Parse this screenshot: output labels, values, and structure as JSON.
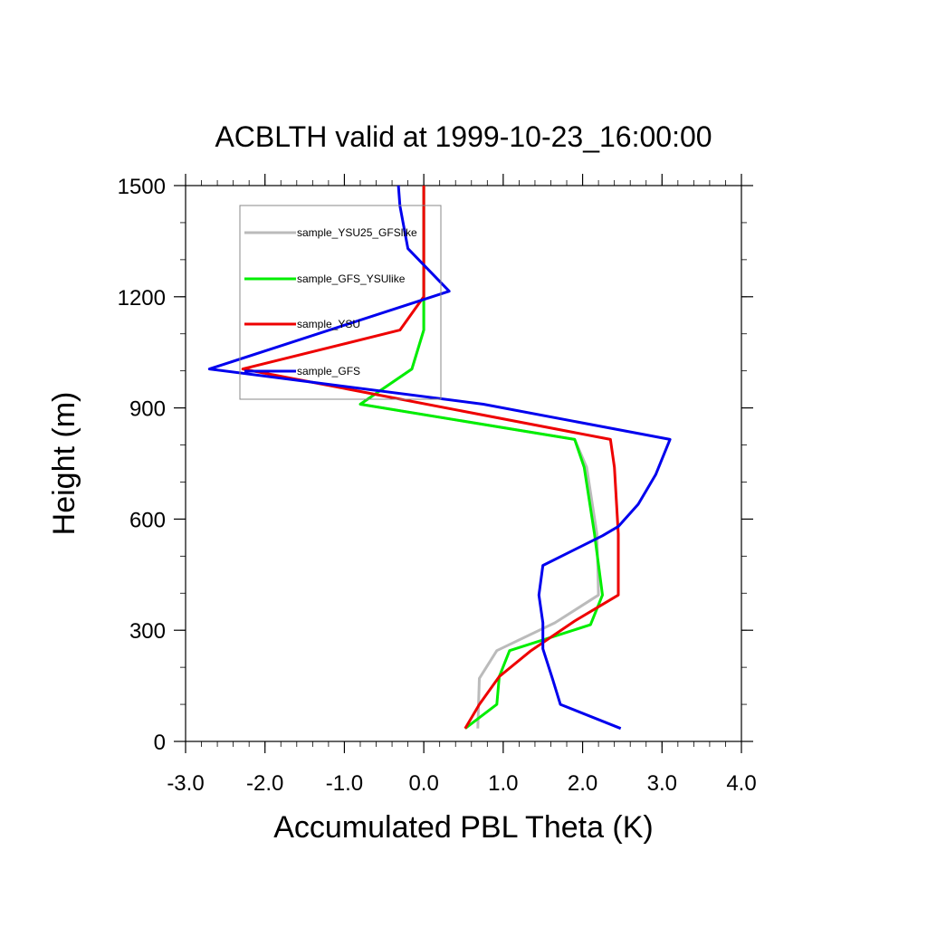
{
  "chart_data": {
    "type": "line",
    "title": "ACBLTH valid at 1999-10-23_16:00:00",
    "xlabel": "Accumulated PBL Theta (K)",
    "ylabel": "Height (m)",
    "xlim": [
      -3.0,
      4.0
    ],
    "ylim": [
      0,
      1500
    ],
    "xticks": [
      "-3.0",
      "-2.0",
      "-1.0",
      "0.0",
      "1.0",
      "2.0",
      "3.0",
      "4.0"
    ],
    "yticks": [
      "0",
      "300",
      "600",
      "900",
      "1200",
      "1500"
    ],
    "grid": false,
    "legend_position": "top-left",
    "series": [
      {
        "name": "sample_YSU25_GFSlike",
        "color": "#bbbbbb",
        "points": [
          [
            0.68,
            35
          ],
          [
            0.7,
            170
          ],
          [
            0.92,
            245
          ],
          [
            1.65,
            320
          ],
          [
            2.2,
            395
          ],
          [
            2.18,
            560
          ],
          [
            2.05,
            740
          ],
          [
            1.9,
            815
          ],
          [
            -0.8,
            910
          ],
          [
            -0.15,
            1005
          ],
          [
            0.0,
            1110
          ],
          [
            0.0,
            1500
          ]
        ]
      },
      {
        "name": "sample_GFS_YSUlike",
        "color": "#00ee00",
        "points": [
          [
            0.52,
            35
          ],
          [
            0.92,
            100
          ],
          [
            0.95,
            175
          ],
          [
            1.08,
            245
          ],
          [
            2.1,
            315
          ],
          [
            2.25,
            395
          ],
          [
            2.15,
            560
          ],
          [
            2.02,
            740
          ],
          [
            1.9,
            815
          ],
          [
            -0.8,
            910
          ],
          [
            -0.15,
            1005
          ],
          [
            0.0,
            1110
          ],
          [
            0.0,
            1500
          ]
        ]
      },
      {
        "name": "sample_YSU",
        "color": "#ee0000",
        "points": [
          [
            0.52,
            35
          ],
          [
            0.7,
            100
          ],
          [
            0.95,
            175
          ],
          [
            1.35,
            245
          ],
          [
            1.9,
            325
          ],
          [
            2.45,
            395
          ],
          [
            2.45,
            560
          ],
          [
            2.4,
            740
          ],
          [
            2.35,
            815
          ],
          [
            -2.28,
            1005
          ],
          [
            -0.3,
            1110
          ],
          [
            0.0,
            1200
          ],
          [
            0.0,
            1500
          ]
        ]
      },
      {
        "name": "sample_GFS",
        "color": "#0000ee",
        "points": [
          [
            2.48,
            35
          ],
          [
            1.72,
            100
          ],
          [
            1.62,
            170
          ],
          [
            1.5,
            250
          ],
          [
            1.5,
            320
          ],
          [
            1.45,
            395
          ],
          [
            1.5,
            475
          ],
          [
            2.25,
            555
          ],
          [
            2.45,
            580
          ],
          [
            2.7,
            640
          ],
          [
            2.92,
            720
          ],
          [
            3.1,
            815
          ],
          [
            0.75,
            910
          ],
          [
            -2.7,
            1005
          ],
          [
            0.32,
            1215
          ],
          [
            -0.2,
            1330
          ],
          [
            -0.3,
            1445
          ],
          [
            -0.32,
            1500
          ]
        ]
      }
    ]
  }
}
